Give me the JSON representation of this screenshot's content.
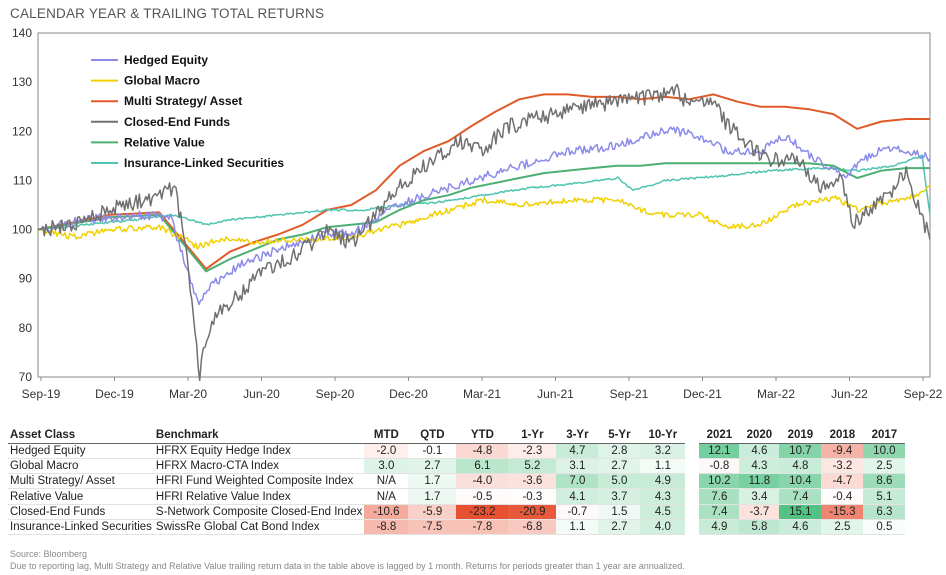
{
  "header": {
    "title": "CALENDAR YEAR & TRAILING TOTAL RETURNS"
  },
  "chart_data": {
    "type": "line",
    "title": "",
    "xlabel": "",
    "ylabel": "",
    "ylim": [
      70,
      140
    ],
    "yticks": [
      70,
      80,
      90,
      100,
      110,
      120,
      130,
      140
    ],
    "x_range": [
      "2019-09-01",
      "2022-09-30"
    ],
    "xtick_labels": [
      "Sep-19",
      "Dec-19",
      "Mar-20",
      "Jun-20",
      "Sep-20",
      "Dec-20",
      "Mar-21",
      "Jun-21",
      "Sep-21",
      "Dec-21",
      "Mar-22",
      "Jun-22",
      "Sep-22"
    ],
    "grid": false,
    "legend": "top-left",
    "series": [
      {
        "name": "Hedged Equity",
        "color": "#8b8be8",
        "points": [
          [
            "2019-09-01",
            100
          ],
          [
            "2019-11-01",
            102
          ],
          [
            "2020-01-01",
            103
          ],
          [
            "2020-02-15",
            102.5
          ],
          [
            "2020-03-05",
            93
          ],
          [
            "2020-03-20",
            85
          ],
          [
            "2020-04-10",
            89
          ],
          [
            "2020-05-15",
            93
          ],
          [
            "2020-07-01",
            96
          ],
          [
            "2020-09-01",
            99.5
          ],
          [
            "2020-10-01",
            99
          ],
          [
            "2020-11-15",
            104
          ],
          [
            "2021-01-01",
            107
          ],
          [
            "2021-03-01",
            110
          ],
          [
            "2021-05-01",
            113
          ],
          [
            "2021-07-01",
            116
          ],
          [
            "2021-09-01",
            117
          ],
          [
            "2021-11-01",
            120.5
          ],
          [
            "2021-12-15",
            119
          ],
          [
            "2022-01-15",
            116
          ],
          [
            "2022-03-01",
            116
          ],
          [
            "2022-04-01",
            119
          ],
          [
            "2022-05-01",
            115
          ],
          [
            "2022-06-15",
            111
          ],
          [
            "2022-07-15",
            115
          ],
          [
            "2022-08-15",
            117
          ],
          [
            "2022-09-30",
            114.5
          ]
        ]
      },
      {
        "name": "Global  Macro",
        "color": "#f0d000",
        "points": [
          [
            "2019-09-01",
            100
          ],
          [
            "2019-10-15",
            98.5
          ],
          [
            "2019-12-01",
            100
          ],
          [
            "2020-02-01",
            100.5
          ],
          [
            "2020-03-05",
            98
          ],
          [
            "2020-03-20",
            96.5
          ],
          [
            "2020-04-15",
            98
          ],
          [
            "2020-06-01",
            97.5
          ],
          [
            "2020-08-01",
            98
          ],
          [
            "2020-10-01",
            98.5
          ],
          [
            "2020-12-01",
            101
          ],
          [
            "2021-02-01",
            104
          ],
          [
            "2021-03-15",
            106
          ],
          [
            "2021-05-01",
            105
          ],
          [
            "2021-07-01",
            106
          ],
          [
            "2021-09-01",
            106
          ],
          [
            "2021-10-15",
            103
          ],
          [
            "2021-12-15",
            103
          ],
          [
            "2022-01-15",
            100.5
          ],
          [
            "2022-03-01",
            101
          ],
          [
            "2022-04-15",
            105
          ],
          [
            "2022-06-01",
            106.5
          ],
          [
            "2022-07-01",
            104
          ],
          [
            "2022-08-15",
            106
          ],
          [
            "2022-09-15",
            107
          ],
          [
            "2022-09-30",
            109
          ]
        ]
      },
      {
        "name": "Multi Strategy/ Asset",
        "color": "#e05a28",
        "points": [
          [
            "2019-09-01",
            100
          ],
          [
            "2019-12-01",
            103
          ],
          [
            "2020-02-01",
            103.5
          ],
          [
            "2020-03-31",
            92
          ],
          [
            "2020-04-30",
            95.5
          ],
          [
            "2020-05-31",
            97.5
          ],
          [
            "2020-06-30",
            99
          ],
          [
            "2020-07-31",
            101
          ],
          [
            "2020-08-31",
            104
          ],
          [
            "2020-09-30",
            105
          ],
          [
            "2020-10-31",
            108
          ],
          [
            "2020-11-30",
            113
          ],
          [
            "2020-12-31",
            116
          ],
          [
            "2021-01-31",
            118
          ],
          [
            "2021-02-28",
            121
          ],
          [
            "2021-03-31",
            124
          ],
          [
            "2021-04-30",
            126.5
          ],
          [
            "2021-05-31",
            127.5
          ],
          [
            "2021-06-30",
            127.5
          ],
          [
            "2021-07-31",
            127
          ],
          [
            "2021-08-31",
            127
          ],
          [
            "2021-09-30",
            126.5
          ],
          [
            "2021-10-31",
            127
          ],
          [
            "2021-11-30",
            126.5
          ],
          [
            "2021-12-31",
            127.5
          ],
          [
            "2022-01-31",
            126
          ],
          [
            "2022-02-28",
            125
          ],
          [
            "2022-03-31",
            125
          ],
          [
            "2022-04-30",
            124.5
          ],
          [
            "2022-05-31",
            123.5
          ],
          [
            "2022-06-30",
            120.5
          ],
          [
            "2022-07-31",
            122
          ],
          [
            "2022-08-31",
            122.5
          ],
          [
            "2022-09-30",
            122.5
          ]
        ]
      },
      {
        "name": "Closed-End Funds",
        "color": "#707070",
        "points": [
          [
            "2019-09-01",
            100
          ],
          [
            "2019-10-15",
            101
          ],
          [
            "2019-12-01",
            104
          ],
          [
            "2020-01-15",
            106
          ],
          [
            "2020-02-20",
            108.5
          ],
          [
            "2020-03-05",
            98
          ],
          [
            "2020-03-15",
            82
          ],
          [
            "2020-03-23",
            70
          ],
          [
            "2020-04-01",
            79
          ],
          [
            "2020-04-20",
            84
          ],
          [
            "2020-05-15",
            87
          ],
          [
            "2020-06-10",
            92
          ],
          [
            "2020-07-01",
            93
          ],
          [
            "2020-08-01",
            96
          ],
          [
            "2020-09-01",
            100
          ],
          [
            "2020-10-01",
            97
          ],
          [
            "2020-11-01",
            103
          ],
          [
            "2020-12-01",
            109
          ],
          [
            "2021-01-01",
            113
          ],
          [
            "2021-02-15",
            118
          ],
          [
            "2021-03-15",
            116
          ],
          [
            "2021-04-15",
            121
          ],
          [
            "2021-06-01",
            123
          ],
          [
            "2021-07-15",
            125
          ],
          [
            "2021-09-01",
            126
          ],
          [
            "2021-10-15",
            127
          ],
          [
            "2021-11-15",
            128
          ],
          [
            "2021-12-01",
            125
          ],
          [
            "2021-12-31",
            127
          ],
          [
            "2022-01-15",
            122
          ],
          [
            "2022-02-15",
            117
          ],
          [
            "2022-03-15",
            114
          ],
          [
            "2022-04-15",
            115
          ],
          [
            "2022-05-15",
            108
          ],
          [
            "2022-06-10",
            110
          ],
          [
            "2022-06-25",
            101
          ],
          [
            "2022-07-15",
            104
          ],
          [
            "2022-08-15",
            108
          ],
          [
            "2022-08-31",
            112
          ],
          [
            "2022-09-15",
            105
          ],
          [
            "2022-09-30",
            98
          ]
        ]
      },
      {
        "name": "Relative Value",
        "color": "#4caf74",
        "points": [
          [
            "2019-09-01",
            100
          ],
          [
            "2019-12-01",
            102.5
          ],
          [
            "2020-02-01",
            103
          ],
          [
            "2020-03-31",
            91.5
          ],
          [
            "2020-04-30",
            94
          ],
          [
            "2020-05-31",
            96
          ],
          [
            "2020-06-30",
            98
          ],
          [
            "2020-07-31",
            99
          ],
          [
            "2020-08-31",
            100.5
          ],
          [
            "2020-09-30",
            101
          ],
          [
            "2020-10-31",
            101.5
          ],
          [
            "2020-11-30",
            104
          ],
          [
            "2020-12-31",
            106
          ],
          [
            "2021-01-31",
            107
          ],
          [
            "2021-02-28",
            108.5
          ],
          [
            "2021-03-31",
            109.5
          ],
          [
            "2021-04-30",
            110.5
          ],
          [
            "2021-05-31",
            111.5
          ],
          [
            "2021-06-30",
            112
          ],
          [
            "2021-07-31",
            112.5
          ],
          [
            "2021-08-31",
            113
          ],
          [
            "2021-09-30",
            113
          ],
          [
            "2021-10-31",
            113.5
          ],
          [
            "2021-11-30",
            113.5
          ],
          [
            "2021-12-31",
            113.5
          ],
          [
            "2022-01-31",
            113.5
          ],
          [
            "2022-02-28",
            113.5
          ],
          [
            "2022-03-31",
            113.5
          ],
          [
            "2022-04-30",
            113.5
          ],
          [
            "2022-05-31",
            113
          ],
          [
            "2022-06-30",
            110.5
          ],
          [
            "2022-07-31",
            112
          ],
          [
            "2022-08-31",
            112.5
          ],
          [
            "2022-09-30",
            112.5
          ]
        ]
      },
      {
        "name": "Insurance-Linked Securities",
        "color": "#4fc4b0",
        "points": [
          [
            "2019-09-01",
            100
          ],
          [
            "2019-11-01",
            101
          ],
          [
            "2020-01-01",
            102
          ],
          [
            "2020-02-15",
            103
          ],
          [
            "2020-03-10",
            102
          ],
          [
            "2020-03-31",
            101
          ],
          [
            "2020-05-01",
            102
          ],
          [
            "2020-07-01",
            103
          ],
          [
            "2020-09-01",
            104
          ],
          [
            "2020-10-15",
            104
          ],
          [
            "2020-12-01",
            105
          ],
          [
            "2021-01-15",
            105.5
          ],
          [
            "2021-03-15",
            107
          ],
          [
            "2021-05-15",
            108.5
          ],
          [
            "2021-07-15",
            109.5
          ],
          [
            "2021-09-01",
            110.5
          ],
          [
            "2021-09-20",
            108
          ],
          [
            "2021-11-01",
            110
          ],
          [
            "2022-01-15",
            111
          ],
          [
            "2022-03-15",
            112
          ],
          [
            "2022-05-15",
            112.5
          ],
          [
            "2022-07-01",
            112
          ],
          [
            "2022-08-15",
            113
          ],
          [
            "2022-09-20",
            115
          ],
          [
            "2022-09-30",
            103
          ]
        ]
      }
    ]
  },
  "table": {
    "headers": [
      "Asset Class",
      "Benchmark",
      "MTD",
      "QTD",
      "YTD",
      "1-Yr",
      "3-Yr",
      "5-Yr",
      "10-Yr",
      "2021",
      "2020",
      "2019",
      "2018",
      "2017"
    ],
    "rows": [
      [
        "Hedged Equity",
        "HFRX Equity Hedge Index",
        "-2.0",
        "-0.1",
        "-4.8",
        "-2.3",
        "4.7",
        "2.8",
        "3.2",
        "12.1",
        "4.6",
        "10.7",
        "-9.4",
        "10.0"
      ],
      [
        "Global  Macro",
        "HFRX Macro-CTA Index",
        "3.0",
        "2.7",
        "6.1",
        "5.2",
        "3.1",
        "2.7",
        "1.1",
        "-0.8",
        "4.3",
        "4.8",
        "-3.2",
        "2.5"
      ],
      [
        "Multi Strategy/ Asset",
        "HFRI Fund Weighted Composite Index",
        "N/A",
        "1.7",
        "-4.0",
        "-3.6",
        "7.0",
        "5.0",
        "4.9",
        "10.2",
        "11.8",
        "10.4",
        "-4.7",
        "8.6"
      ],
      [
        "Relative Value",
        "HFRI Relative Value Index",
        "N/A",
        "1.7",
        "-0.5",
        "-0.3",
        "4.1",
        "3.7",
        "4.3",
        "7.6",
        "3.4",
        "7.4",
        "-0.4",
        "5.1"
      ],
      [
        "Closed-End Funds",
        "S-Network Composite Closed-End Index",
        "-10.6",
        "-5.9",
        "-23.2",
        "-20.9",
        "-0.7",
        "1.5",
        "4.5",
        "7.4",
        "-3.7",
        "15.1",
        "-15.3",
        "6.3"
      ],
      [
        "Insurance-Linked Securities",
        "SwissRe Global Cat Bond Index",
        "-8.8",
        "-7.5",
        "-7.8",
        "-6.8",
        "1.1",
        "2.7",
        "4.0",
        "4.9",
        "5.8",
        "4.6",
        "2.5",
        "0.5"
      ]
    ]
  },
  "footer": {
    "source": "Source: Bloomberg",
    "note": "Due to reporting lag, Multi Strategy and Relative Value trailing return data in the table above is lagged by 1 month. Returns for periods greater than 1 year are annualized."
  }
}
